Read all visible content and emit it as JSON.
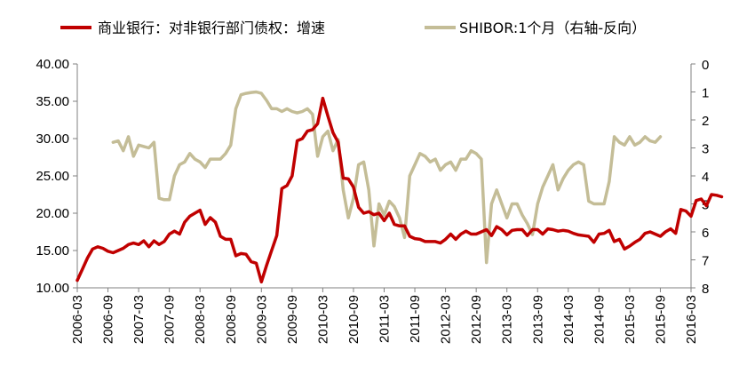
{
  "chart_data": {
    "type": "line",
    "title": "",
    "legend": {
      "placement": "top",
      "items": [
        {
          "label": "商业银行：对非银行部门债权：增速",
          "color": "#C00000"
        },
        {
          "label": "SHIBOR:1个月（右轴-反向）",
          "color": "#C4BD97"
        }
      ]
    },
    "x_ticks": [
      "2006-03",
      "2006-09",
      "2007-03",
      "2007-09",
      "2008-03",
      "2008-09",
      "2009-03",
      "2009-09",
      "2010-03",
      "2010-09",
      "2011-03",
      "2011-09",
      "2012-03",
      "2012-09",
      "2013-03",
      "2013-09",
      "2014-03",
      "2014-09",
      "2015-03",
      "2015-09",
      "2016-03"
    ],
    "y_left": {
      "min": 10,
      "max": 40,
      "ticks": [
        "10.00",
        "15.00",
        "20.00",
        "25.00",
        "30.00",
        "35.00",
        "40.00"
      ]
    },
    "y_right": {
      "min": 0,
      "max": 8,
      "reversed": true,
      "ticks": [
        "0",
        "1",
        "2",
        "3",
        "4",
        "5",
        "6",
        "7",
        "8"
      ]
    },
    "series": [
      {
        "name": "商业银行：对非银行部门债权：增速",
        "axis": "left",
        "color": "#C00000",
        "start": "2006-03",
        "values": [
          11.0,
          12.5,
          14.0,
          15.2,
          15.5,
          15.3,
          14.9,
          14.7,
          15.0,
          15.3,
          15.8,
          16.0,
          15.8,
          16.3,
          15.5,
          16.3,
          15.8,
          16.2,
          17.2,
          17.6,
          17.2,
          18.8,
          19.6,
          20.0,
          20.4,
          18.5,
          19.4,
          18.8,
          16.9,
          16.5,
          16.5,
          14.3,
          14.6,
          14.5,
          13.5,
          13.3,
          10.8,
          13.0,
          15.0,
          17.0,
          23.3,
          23.7,
          25.0,
          29.7,
          30.0,
          31.0,
          31.2,
          32.0,
          35.4,
          33.0,
          30.8,
          29.5,
          24.7,
          24.6,
          23.5,
          20.8,
          20.0,
          20.2,
          19.8,
          20.0,
          19.0,
          20.0,
          18.5,
          18.3,
          18.3,
          16.9,
          16.6,
          16.5,
          16.2,
          16.2,
          16.2,
          16.0,
          16.5,
          17.2,
          16.5,
          17.2,
          17.6,
          17.2,
          17.2,
          17.5,
          17.8,
          17.0,
          18.2,
          17.8,
          17.1,
          17.7,
          17.8,
          17.8,
          17.0,
          17.8,
          17.8,
          17.2,
          17.9,
          17.8,
          17.6,
          17.7,
          17.6,
          17.3,
          17.1,
          17.0,
          16.9,
          16.1,
          17.2,
          17.3,
          17.7,
          16.2,
          16.5,
          15.2,
          15.6,
          16.1,
          16.5,
          17.3,
          17.5,
          17.2,
          16.9,
          17.5,
          17.9,
          17.3,
          20.5,
          20.3,
          19.6,
          21.7,
          21.9,
          21.0,
          22.5,
          22.4,
          22.2
        ]
      },
      {
        "name": "SHIBOR:1个月（右轴-反向）",
        "axis": "right",
        "color": "#C4BD97",
        "start": "2006-10",
        "values": [
          2.8,
          2.75,
          3.1,
          2.6,
          3.3,
          2.9,
          2.95,
          3.0,
          2.8,
          4.8,
          4.85,
          4.85,
          4.0,
          3.6,
          3.5,
          3.2,
          3.4,
          3.5,
          3.7,
          3.4,
          3.4,
          3.4,
          3.2,
          2.9,
          1.6,
          1.1,
          1.05,
          1.02,
          1.0,
          1.05,
          1.3,
          1.6,
          1.6,
          1.7,
          1.6,
          1.7,
          1.75,
          1.7,
          1.6,
          1.8,
          3.3,
          2.6,
          2.4,
          3.1,
          2.7,
          4.5,
          5.5,
          4.8,
          3.6,
          3.5,
          4.5,
          6.5,
          5.0,
          5.4,
          4.9,
          5.1,
          5.5,
          6.2,
          4.0,
          3.6,
          3.2,
          3.3,
          3.5,
          3.4,
          3.8,
          3.6,
          3.5,
          3.8,
          3.4,
          3.4,
          3.1,
          3.2,
          3.4,
          7.1,
          5.0,
          4.5,
          5.0,
          5.5,
          5.0,
          5.0,
          5.4,
          5.7,
          6.1,
          5.0,
          4.4,
          4.0,
          3.6,
          4.5,
          4.1,
          3.8,
          3.6,
          3.5,
          3.6,
          4.9,
          5.0,
          5.0,
          5.0,
          4.2,
          2.6,
          2.8,
          2.9,
          2.6,
          2.9,
          2.8,
          2.6,
          2.75,
          2.8,
          2.6
        ]
      }
    ]
  }
}
